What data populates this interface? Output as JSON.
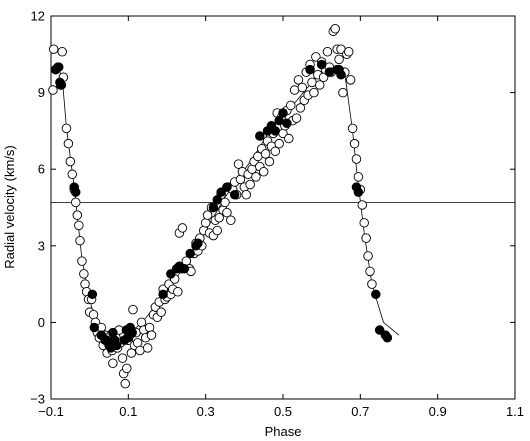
{
  "chart_data": {
    "type": "scatter",
    "xlabel": "Phase",
    "ylabel": "Radial velocity  (km/s)",
    "xlim": [
      -0.1,
      1.1
    ],
    "ylim": [
      -3,
      12
    ],
    "xticks": [
      -0.1,
      0.1,
      0.3,
      0.5,
      0.7,
      0.9,
      1.1
    ],
    "xtick_labels": [
      "−0.1",
      "0.1",
      "0.3",
      "0.5",
      "0.7",
      "0.9",
      "1.1"
    ],
    "yticks": [
      -3,
      0,
      3,
      6,
      9,
      12
    ],
    "ytick_labels": [
      "−3",
      "0",
      "3",
      "6",
      "9",
      "12"
    ],
    "grid": false,
    "reference_line": {
      "y": 4.7
    },
    "series": [
      {
        "marker": "open-circle",
        "points": [
          [
            -0.095,
            9.1
          ],
          [
            -0.093,
            10.7
          ],
          [
            -0.088,
            9.9
          ],
          [
            -0.08,
            10.0
          ],
          [
            -0.075,
            9.3
          ],
          [
            -0.071,
            10.6
          ],
          [
            -0.068,
            9.6
          ],
          [
            -0.06,
            7.6
          ],
          [
            -0.055,
            7.0
          ],
          [
            -0.05,
            6.3
          ],
          [
            -0.045,
            5.8
          ],
          [
            -0.04,
            5.2
          ],
          [
            -0.036,
            4.7
          ],
          [
            -0.032,
            4.2
          ],
          [
            -0.028,
            3.8
          ],
          [
            -0.025,
            3.2
          ],
          [
            -0.02,
            2.4
          ],
          [
            -0.015,
            1.9
          ],
          [
            -0.012,
            1.5
          ],
          [
            -0.008,
            1.2
          ],
          [
            -0.003,
            0.9
          ],
          [
            0.0,
            0.4
          ],
          [
            0.005,
            0.9
          ],
          [
            0.01,
            0.3
          ],
          [
            0.015,
            0.0
          ],
          [
            0.02,
            -0.4
          ],
          [
            0.025,
            -0.6
          ],
          [
            0.03,
            -0.2
          ],
          [
            0.035,
            -0.9
          ],
          [
            0.04,
            -0.5
          ],
          [
            0.045,
            -1.2
          ],
          [
            0.05,
            -0.8
          ],
          [
            0.055,
            -0.5
          ],
          [
            0.058,
            -1.1
          ],
          [
            0.06,
            -1.6
          ],
          [
            0.064,
            -0.4
          ],
          [
            0.068,
            -0.6
          ],
          [
            0.072,
            -1.0
          ],
          [
            0.076,
            -0.3
          ],
          [
            0.08,
            -0.8
          ],
          [
            0.085,
            -1.4
          ],
          [
            0.088,
            -2.0
          ],
          [
            0.092,
            -2.4
          ],
          [
            0.096,
            -1.8
          ],
          [
            0.1,
            -0.7
          ],
          [
            0.104,
            -0.5
          ],
          [
            0.108,
            -1.2
          ],
          [
            0.112,
            0.5
          ],
          [
            0.116,
            -0.9
          ],
          [
            0.12,
            -0.4
          ],
          [
            0.124,
            -0.8
          ],
          [
            0.13,
            -1.1
          ],
          [
            0.134,
            0.0
          ],
          [
            0.14,
            -0.3
          ],
          [
            0.145,
            -0.6
          ],
          [
            0.15,
            -1.0
          ],
          [
            0.155,
            -0.2
          ],
          [
            0.16,
            -0.5
          ],
          [
            0.165,
            0.3
          ],
          [
            0.17,
            0.6
          ],
          [
            0.175,
            0.2
          ],
          [
            0.18,
            0.8
          ],
          [
            0.185,
            0.4
          ],
          [
            0.19,
            1.3
          ],
          [
            0.195,
            0.9
          ],
          [
            0.2,
            1.0
          ],
          [
            0.205,
            1.5
          ],
          [
            0.21,
            1.1
          ],
          [
            0.215,
            1.3
          ],
          [
            0.22,
            1.7
          ],
          [
            0.228,
            1.2
          ],
          [
            0.232,
            3.5
          ],
          [
            0.24,
            3.7
          ],
          [
            0.245,
            2.2
          ],
          [
            0.25,
            2.4
          ],
          [
            0.258,
            2.1
          ],
          [
            0.262,
            2.0
          ],
          [
            0.27,
            2.7
          ],
          [
            0.275,
            3.1
          ],
          [
            0.28,
            2.8
          ],
          [
            0.285,
            3.3
          ],
          [
            0.29,
            3.0
          ],
          [
            0.295,
            3.6
          ],
          [
            0.3,
            3.9
          ],
          [
            0.305,
            4.2
          ],
          [
            0.31,
            3.5
          ],
          [
            0.315,
            4.5
          ],
          [
            0.32,
            3.4
          ],
          [
            0.325,
            4.0
          ],
          [
            0.33,
            3.6
          ],
          [
            0.335,
            4.1
          ],
          [
            0.34,
            5.0
          ],
          [
            0.345,
            4.4
          ],
          [
            0.35,
            4.7
          ],
          [
            0.355,
            4.3
          ],
          [
            0.36,
            5.3
          ],
          [
            0.365,
            4.0
          ],
          [
            0.37,
            5.2
          ],
          [
            0.375,
            5.5
          ],
          [
            0.38,
            5.0
          ],
          [
            0.385,
            6.2
          ],
          [
            0.39,
            5.6
          ],
          [
            0.395,
            5.9
          ],
          [
            0.4,
            5.3
          ],
          [
            0.405,
            5.0
          ],
          [
            0.41,
            5.8
          ],
          [
            0.415,
            5.4
          ],
          [
            0.42,
            6.0
          ],
          [
            0.425,
            6.3
          ],
          [
            0.43,
            5.7
          ],
          [
            0.435,
            6.5
          ],
          [
            0.44,
            6.1
          ],
          [
            0.445,
            6.8
          ],
          [
            0.45,
            5.9
          ],
          [
            0.455,
            6.6
          ],
          [
            0.46,
            7.1
          ],
          [
            0.465,
            6.3
          ],
          [
            0.47,
            6.9
          ],
          [
            0.475,
            7.4
          ],
          [
            0.48,
            6.7
          ],
          [
            0.485,
            8.2
          ],
          [
            0.49,
            7.0
          ],
          [
            0.495,
            8.0
          ],
          [
            0.5,
            7.4
          ],
          [
            0.505,
            7.7
          ],
          [
            0.51,
            8.3
          ],
          [
            0.515,
            7.2
          ],
          [
            0.52,
            8.5
          ],
          [
            0.525,
            7.9
          ],
          [
            0.53,
            9.1
          ],
          [
            0.535,
            8.0
          ],
          [
            0.54,
            9.5
          ],
          [
            0.545,
            8.4
          ],
          [
            0.55,
            9.2
          ],
          [
            0.555,
            8.7
          ],
          [
            0.56,
            9.8
          ],
          [
            0.565,
            8.9
          ],
          [
            0.57,
            10.1
          ],
          [
            0.575,
            9.4
          ],
          [
            0.58,
            9.0
          ],
          [
            0.585,
            10.4
          ],
          [
            0.59,
            9.7
          ],
          [
            0.595,
            9.3
          ],
          [
            0.6,
            10.2
          ],
          [
            0.605,
            9.6
          ],
          [
            0.61,
            9.9
          ],
          [
            0.615,
            10.6
          ],
          [
            0.62,
            10.0
          ],
          [
            0.625,
            9.8
          ],
          [
            0.63,
            11.4
          ],
          [
            0.635,
            11.5
          ],
          [
            0.64,
            10.7
          ],
          [
            0.645,
            10.3
          ],
          [
            0.65,
            10.7
          ],
          [
            0.655,
            9.0
          ],
          [
            0.66,
            9.8
          ],
          [
            0.665,
            10.5
          ],
          [
            0.67,
            10.6
          ],
          [
            0.675,
            9.5
          ],
          [
            0.68,
            7.6
          ],
          [
            0.685,
            7.0
          ],
          [
            0.69,
            6.4
          ],
          [
            0.695,
            5.7
          ],
          [
            0.7,
            5.2
          ],
          [
            0.705,
            4.6
          ],
          [
            0.71,
            3.9
          ],
          [
            0.715,
            3.3
          ],
          [
            0.72,
            2.6
          ],
          [
            0.725,
            2.0
          ],
          [
            0.73,
            1.5
          ]
        ]
      },
      {
        "marker": "filled-circle",
        "points": [
          [
            -0.088,
            9.9
          ],
          [
            -0.082,
            10.0
          ],
          [
            -0.077,
            9.4
          ],
          [
            -0.073,
            9.3
          ],
          [
            -0.04,
            5.3
          ],
          [
            -0.036,
            5.1
          ],
          [
            0.007,
            1.1
          ],
          [
            0.012,
            -0.2
          ],
          [
            0.03,
            -0.5
          ],
          [
            0.04,
            -0.7
          ],
          [
            0.045,
            -0.7
          ],
          [
            0.05,
            -0.9
          ],
          [
            0.055,
            -1.0
          ],
          [
            0.06,
            -0.4
          ],
          [
            0.065,
            -0.7
          ],
          [
            0.07,
            -0.9
          ],
          [
            0.09,
            -0.7
          ],
          [
            0.095,
            -0.3
          ],
          [
            0.1,
            -0.6
          ],
          [
            0.105,
            -0.2
          ],
          [
            0.11,
            -0.4
          ],
          [
            0.19,
            1.1
          ],
          [
            0.21,
            1.9
          ],
          [
            0.225,
            2.1
          ],
          [
            0.232,
            2.2
          ],
          [
            0.238,
            2.1
          ],
          [
            0.245,
            2.1
          ],
          [
            0.26,
            2.7
          ],
          [
            0.275,
            3.0
          ],
          [
            0.28,
            3.1
          ],
          [
            0.32,
            4.5
          ],
          [
            0.33,
            4.8
          ],
          [
            0.34,
            5.1
          ],
          [
            0.355,
            5.3
          ],
          [
            0.375,
            5.0
          ],
          [
            0.44,
            7.3
          ],
          [
            0.46,
            7.5
          ],
          [
            0.47,
            7.7
          ],
          [
            0.48,
            7.5
          ],
          [
            0.49,
            7.9
          ],
          [
            0.5,
            8.2
          ],
          [
            0.51,
            7.8
          ],
          [
            0.57,
            9.9
          ],
          [
            0.6,
            10.1
          ],
          [
            0.62,
            9.8
          ],
          [
            0.64,
            9.9
          ],
          [
            0.645,
            9.9
          ],
          [
            0.65,
            9.7
          ],
          [
            0.69,
            5.3
          ],
          [
            0.695,
            5.1
          ],
          [
            0.74,
            1.1
          ],
          [
            0.75,
            -0.3
          ],
          [
            0.765,
            -0.5
          ],
          [
            0.77,
            -0.6
          ]
        ]
      },
      {
        "marker": "line",
        "points": [
          [
            -0.1,
            9.8
          ],
          [
            -0.08,
            10.0
          ],
          [
            -0.07,
            9.4
          ],
          [
            -0.06,
            7.6
          ],
          [
            -0.04,
            5.3
          ],
          [
            -0.02,
            2.5
          ],
          [
            0.0,
            0.9
          ],
          [
            0.02,
            -0.3
          ],
          [
            0.05,
            -0.7
          ],
          [
            0.08,
            -0.6
          ],
          [
            0.1,
            -0.4
          ],
          [
            0.13,
            -0.1
          ],
          [
            0.19,
            1.0
          ],
          [
            0.25,
            2.3
          ],
          [
            0.3,
            3.6
          ],
          [
            0.35,
            4.9
          ],
          [
            0.42,
            6.4
          ],
          [
            0.47,
            7.6
          ],
          [
            0.52,
            8.4
          ],
          [
            0.58,
            9.5
          ],
          [
            0.63,
            10.0
          ],
          [
            0.66,
            9.7
          ],
          [
            0.68,
            7.5
          ],
          [
            0.69,
            6.0
          ],
          [
            0.71,
            3.5
          ],
          [
            0.73,
            1.5
          ],
          [
            0.76,
            0.0
          ],
          [
            0.8,
            -0.5
          ]
        ]
      }
    ]
  }
}
